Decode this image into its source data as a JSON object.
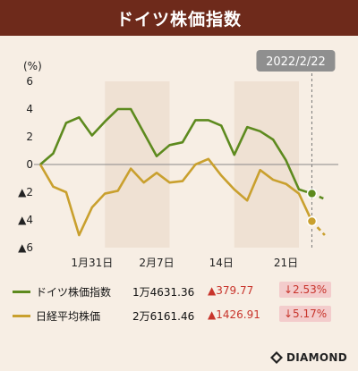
{
  "header": {
    "title": "ドイツ株価指数"
  },
  "brand": {
    "name": "DIAMOND"
  },
  "colors": {
    "dax": "#5d8a1e",
    "nikkei": "#c9a02e",
    "background": "#f7eee4",
    "shade": "#efe1d3",
    "header": "#6e2a1b",
    "down_red": "#c8342b"
  },
  "legend": [
    {
      "name": "ドイツ株価指数",
      "value": "1万4631.36",
      "change": "▲379.77",
      "pct": "↓2.53%"
    },
    {
      "name": "日経平均株価",
      "value": "2万6161.46",
      "change": "▲1426.91",
      "pct": "↓5.17%"
    }
  ],
  "chart_data": {
    "type": "line",
    "unit": "(%)",
    "ylim": [
      -6,
      6
    ],
    "y_ticks": [
      6,
      4,
      2,
      0,
      -2,
      -4,
      -6
    ],
    "y_tick_labels": [
      "6",
      "4",
      "2",
      "0",
      "▲2",
      "▲4",
      "▲6"
    ],
    "x_tick_labels": [
      "1月31日",
      "2月7日",
      "14日",
      "21日"
    ],
    "callout_label": "2022/2/22",
    "grid": false,
    "series": [
      {
        "name": "ドイツ株価指数",
        "color": "#5d8a1e",
        "values": [
          0,
          0.8,
          3.0,
          3.4,
          2.1,
          3.1,
          4.0,
          4.0,
          2.3,
          0.6,
          1.4,
          1.6,
          3.2,
          3.2,
          2.8,
          0.7,
          2.7,
          2.4,
          1.8,
          0.3,
          -1.8,
          -2.1
        ],
        "projection": [
          -2.1,
          -2.5
        ]
      },
      {
        "name": "日経平均株価",
        "color": "#c9a02e",
        "values": [
          0,
          -1.6,
          -2.0,
          -5.1,
          -3.1,
          -2.1,
          -1.9,
          -0.3,
          -1.3,
          -0.6,
          -1.3,
          -1.2,
          0.0,
          0.4,
          -0.8,
          -1.8,
          -2.6,
          -0.4,
          -1.1,
          -1.4,
          -2.1,
          -4.1
        ],
        "projection": [
          -4.1,
          -5.1
        ]
      }
    ]
  }
}
